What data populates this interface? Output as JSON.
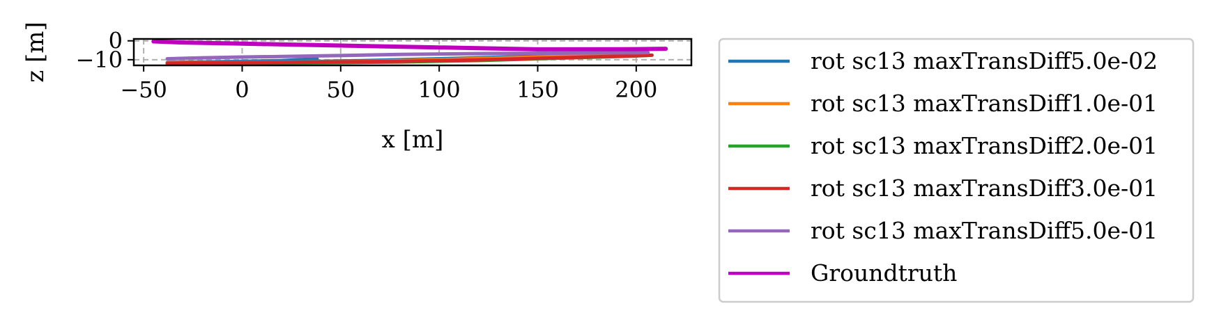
{
  "chart_data": {
    "type": "line",
    "title": "",
    "xlabel": "x [m]",
    "ylabel": "z [m]",
    "xlim": [
      -55,
      228
    ],
    "ylim": [
      -13,
      1
    ],
    "xticks": [
      -50,
      0,
      50,
      100,
      150,
      200
    ],
    "xtick_labels": [
      "−50",
      "0",
      "50",
      "100",
      "150",
      "200"
    ],
    "yticks": [
      0,
      -10
    ],
    "ytick_labels": [
      "0",
      "−10"
    ],
    "grid": true,
    "legend_position": "outside-right",
    "series": [
      {
        "name": "rot sc13 maxTransDiff5.0e-02",
        "color": "#1f77b4",
        "x": [
          -38,
          -20,
          0,
          20,
          38,
          30,
          60,
          100,
          150,
          190,
          205
        ],
        "y": [
          -11.5,
          -11.2,
          -10.9,
          -10.5,
          -9.5,
          -11.0,
          -10.5,
          -9.5,
          -8.2,
          -7.3,
          -7.0
        ]
      },
      {
        "name": "rot sc13 maxTransDiff1.0e-01",
        "color": "#ff7f0e",
        "x": [
          -38,
          0,
          40,
          60,
          100,
          150,
          190,
          206
        ],
        "y": [
          -11.8,
          -11.5,
          -11.2,
          -11.0,
          -10.0,
          -8.6,
          -7.6,
          -7.3
        ]
      },
      {
        "name": "rot sc13 maxTransDiff2.0e-01",
        "color": "#2ca02c",
        "x": [
          -38,
          0,
          40,
          80,
          120,
          160,
          200,
          206
        ],
        "y": [
          -12.2,
          -11.9,
          -11.6,
          -11.2,
          -10.4,
          -9.2,
          -8.0,
          -7.7
        ]
      },
      {
        "name": "rot sc13 maxTransDiff3.0e-01",
        "color": "#d62728",
        "x": [
          -38,
          0,
          40,
          80,
          120,
          160,
          200,
          208
        ],
        "y": [
          -11.9,
          -11.6,
          -11.3,
          -10.9,
          -10.1,
          -9.0,
          -7.9,
          -7.6
        ]
      },
      {
        "name": "rot sc13 maxTransDiff5.0e-01",
        "color": "#9467bd",
        "x": [
          -38,
          -20,
          0,
          20,
          38,
          80,
          120,
          160,
          200,
          206
        ],
        "y": [
          -9.5,
          -9.0,
          -8.6,
          -8.3,
          -8.0,
          -7.2,
          -6.8,
          -6.5,
          -6.3,
          -6.2
        ]
      },
      {
        "name": "Groundtruth",
        "color": "#bf00bf",
        "x": [
          -45,
          -30,
          0,
          50,
          100,
          150,
          200,
          215
        ],
        "y": [
          -0.3,
          -0.9,
          -1.5,
          -2.5,
          -3.5,
          -4.5,
          -4.4,
          -4.2
        ]
      }
    ]
  }
}
